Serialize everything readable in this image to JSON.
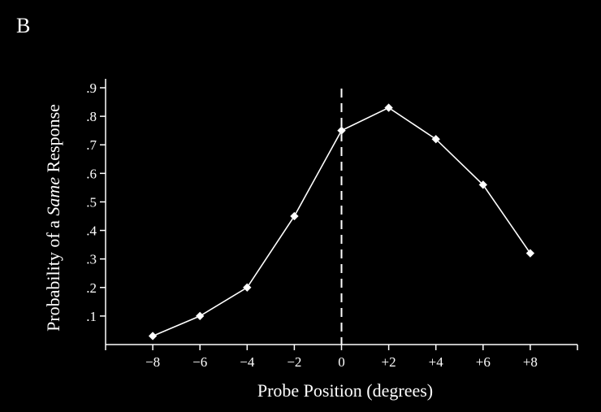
{
  "panel_label": "B",
  "chart_data": {
    "type": "line",
    "title": "",
    "xlabel": "Probe Position (degrees)",
    "ylabel_parts": [
      "Probability of a ",
      "Same",
      " Response"
    ],
    "x_ticks": [
      {
        "value": -8,
        "label": "−8"
      },
      {
        "value": -6,
        "label": "−6"
      },
      {
        "value": -4,
        "label": "−4"
      },
      {
        "value": -2,
        "label": "−2"
      },
      {
        "value": 0,
        "label": "0"
      },
      {
        "value": 2,
        "label": "+2"
      },
      {
        "value": 4,
        "label": "+4"
      },
      {
        "value": 6,
        "label": "+6"
      },
      {
        "value": 8,
        "label": "+8"
      }
    ],
    "y_ticks": [
      {
        "value": 0.1,
        "label": ".1"
      },
      {
        "value": 0.2,
        "label": ".2"
      },
      {
        "value": 0.3,
        "label": ".3"
      },
      {
        "value": 0.4,
        "label": ".4"
      },
      {
        "value": 0.5,
        "label": ".5"
      },
      {
        "value": 0.6,
        "label": ".6"
      },
      {
        "value": 0.7,
        "label": ".7"
      },
      {
        "value": 0.8,
        "label": ".8"
      },
      {
        "value": 0.9,
        "label": ".9"
      }
    ],
    "xlim": [
      -10,
      10
    ],
    "ylim": [
      0,
      0.9
    ],
    "reference_line_x": 0,
    "series": [
      {
        "x": [
          -8,
          -6,
          -4,
          -2,
          0,
          2,
          4,
          6,
          8
        ],
        "values": [
          0.03,
          0.1,
          0.2,
          0.45,
          0.75,
          0.83,
          0.72,
          0.56,
          0.32
        ]
      }
    ],
    "marker": "diamond",
    "colors": {
      "background": "#000000",
      "foreground": "#ffffff"
    }
  }
}
